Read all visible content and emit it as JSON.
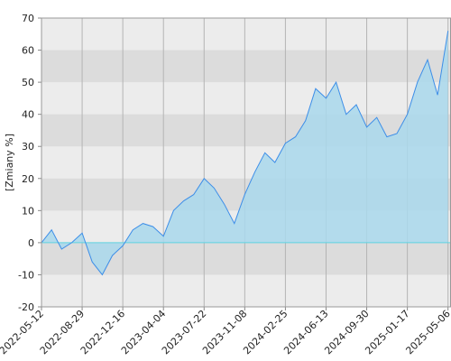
{
  "chart_data": {
    "type": "area",
    "y_label": "[Zmiany %]",
    "x": [
      "2022-05-12",
      "2022-06-08",
      "2022-07-05",
      "2022-08-01",
      "2022-08-29",
      "2022-09-25",
      "2022-10-22",
      "2022-11-18",
      "2022-12-16",
      "2023-01-12",
      "2023-02-08",
      "2023-03-07",
      "2023-04-04",
      "2023-05-01",
      "2023-05-28",
      "2023-06-24",
      "2023-07-22",
      "2023-08-18",
      "2023-09-14",
      "2023-10-11",
      "2023-11-08",
      "2023-12-05",
      "2024-01-01",
      "2024-01-28",
      "2024-02-25",
      "2024-03-23",
      "2024-04-19",
      "2024-05-16",
      "2024-06-13",
      "2024-07-10",
      "2024-08-06",
      "2024-09-02",
      "2024-09-30",
      "2024-10-27",
      "2024-11-23",
      "2024-12-20",
      "2025-01-17",
      "2025-02-13",
      "2025-03-12",
      "2025-04-08",
      "2025-05-06"
    ],
    "values": [
      0,
      4,
      -2,
      0,
      3,
      -6,
      -10,
      -4,
      -1,
      4,
      6,
      5,
      2,
      10,
      13,
      15,
      20,
      17,
      12,
      6,
      15,
      22,
      28,
      25,
      31,
      33,
      38,
      48,
      45,
      50,
      40,
      43,
      36,
      39,
      33,
      34,
      40,
      50,
      57,
      46,
      66
    ],
    "line_color": "#3d8ee8",
    "fill_color": "#a9d8ec",
    "zero_line_color": "#5fd3e0",
    "xlim": [
      "2022-05-12",
      "2025-05-14"
    ],
    "xticks": [
      "2022-05-12",
      "2022-08-29",
      "2022-12-16",
      "2023-04-04",
      "2023-07-22",
      "2023-11-08",
      "2024-02-25",
      "2024-06-13",
      "2024-09-30",
      "2025-01-17",
      "2025-05-06"
    ],
    "ylim": [
      -20,
      70
    ],
    "yticks": [
      -20,
      -10,
      0,
      10,
      20,
      30,
      40,
      50,
      60,
      70
    ],
    "grid": true
  }
}
